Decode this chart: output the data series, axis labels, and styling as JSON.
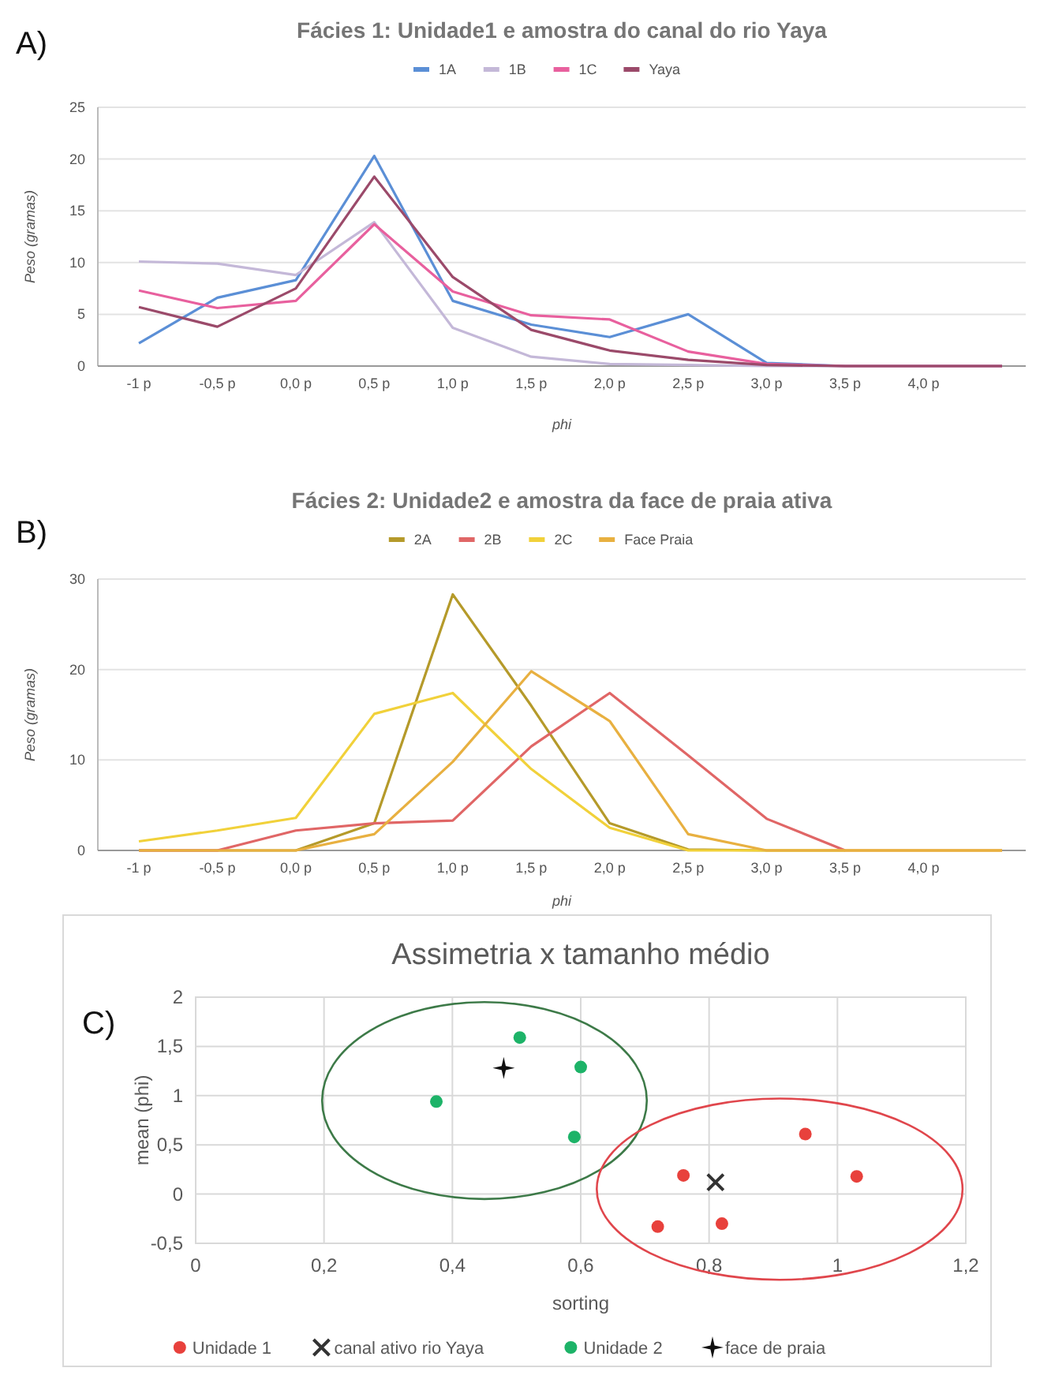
{
  "chart_data": [
    {
      "type": "line",
      "title": "Fácies 1: Unidade1 e amostra do canal do rio Yaya",
      "xlabel": "phi",
      "ylabel": "Peso (gramas)",
      "annotations": [
        "A)"
      ],
      "categories": [
        "-1 p",
        "-0,5 p",
        "0,0 p",
        "0,5 p",
        "1,0 p",
        "1,5 p",
        "2,0 p",
        "2,5 p",
        "3,0 p",
        "3,5 p",
        "4,0 p",
        null
      ],
      "ylim": [
        0,
        25
      ],
      "yticks": [
        0,
        5,
        10,
        15,
        20,
        25
      ],
      "grid": "y",
      "legend": "top",
      "line_style": "solid",
      "series": [
        {
          "name": "1A",
          "color": "#5b8fd6",
          "values": [
            2.2,
            6.6,
            8.3,
            20.3,
            6.3,
            4.0,
            2.8,
            5.0,
            0.3,
            0,
            0,
            0
          ]
        },
        {
          "name": "1B",
          "color": "#c4b8d8",
          "values": [
            10.1,
            9.9,
            8.8,
            13.9,
            3.7,
            0.9,
            0.2,
            0.1,
            0,
            0,
            0,
            0
          ]
        },
        {
          "name": "1C",
          "color": "#e8609e",
          "values": [
            7.3,
            5.6,
            6.3,
            13.7,
            7.2,
            4.9,
            4.5,
            1.4,
            0.2,
            0,
            0,
            0
          ]
        },
        {
          "name": "Yaya",
          "color": "#9b4a6a",
          "values": [
            5.7,
            3.8,
            7.5,
            18.3,
            8.6,
            3.5,
            1.5,
            0.6,
            0.1,
            0,
            0,
            0
          ]
        }
      ]
    },
    {
      "type": "line",
      "title": "Fácies 2: Unidade2 e amostra da face de praia ativa",
      "xlabel": "phi",
      "ylabel": "Peso (gramas)",
      "annotations": [
        "B)"
      ],
      "categories": [
        "-1 p",
        "-0,5 p",
        "0,0 p",
        "0,5 p",
        "1,0 p",
        "1,5 p",
        "2,0 p",
        "2,5 p",
        "3,0 p",
        "3,5 p",
        "4,0 p",
        null
      ],
      "ylim": [
        0,
        30
      ],
      "yticks": [
        0,
        10,
        20,
        30
      ],
      "grid": "y",
      "legend": "top",
      "line_style": "solid",
      "series": [
        {
          "name": "2A",
          "color": "#b59a2a",
          "values": [
            0,
            0,
            0,
            3,
            28.3,
            16,
            3,
            0.1,
            0,
            0,
            null,
            null
          ]
        },
        {
          "name": "2B",
          "color": "#e06666",
          "values": [
            0,
            0,
            2.2,
            3,
            3.3,
            11.5,
            17.4,
            10.5,
            3.5,
            0,
            0,
            0
          ]
        },
        {
          "name": "2C",
          "color": "#f1d13a",
          "values": [
            1,
            2.2,
            3.6,
            15.1,
            17.4,
            9,
            2.5,
            0,
            0,
            0,
            0,
            0
          ]
        },
        {
          "name": "Face Praia",
          "color": "#e8b040",
          "values": [
            0,
            0,
            0,
            1.8,
            9.8,
            19.8,
            14.3,
            1.8,
            0,
            0,
            0,
            0
          ]
        }
      ]
    },
    {
      "type": "scatter",
      "title": "Assimetria x tamanho médio",
      "xlabel": "sorting",
      "ylabel": "mean (phi)",
      "annotations": [
        "C)"
      ],
      "xlim": [
        0,
        1.2
      ],
      "xticks": [
        0,
        {
          "value": 0.2,
          "label": "0,2"
        },
        {
          "value": 0.4,
          "label": "0,4"
        },
        {
          "value": 0.6,
          "label": "0,6"
        },
        {
          "value": 0.8,
          "label": "0,8"
        },
        1,
        {
          "value": 1.2,
          "label": "1,2"
        }
      ],
      "ylim": [
        -0.5,
        2
      ],
      "yticks": [
        {
          "value": -0.5,
          "label": "-0,5"
        },
        0,
        {
          "value": 0.5,
          "label": "0,5"
        },
        1,
        {
          "value": 1.5,
          "label": "1,5"
        },
        2
      ],
      "grid": true,
      "legend": "bottom",
      "series": [
        {
          "name": "Unidade 1",
          "color": "#e8413c",
          "marker": "circle",
          "x": [
            0.72,
            0.76,
            0.82,
            0.95,
            1.03
          ],
          "values": [
            -0.33,
            0.19,
            -0.3,
            0.61,
            0.18
          ]
        },
        {
          "name": "canal ativo rio Yaya",
          "color": "#333333",
          "marker": "cross",
          "x": [
            0.81
          ],
          "values": [
            0.12
          ]
        },
        {
          "name": "Unidade 2",
          "color": "#1db368",
          "marker": "circle",
          "x": [
            0.375,
            0.505,
            0.6,
            0.59
          ],
          "values": [
            0.94,
            1.59,
            1.29,
            0.58
          ]
        },
        {
          "name": "face de praia",
          "color": "#111111",
          "marker": "star",
          "x": [
            0.48
          ],
          "values": [
            1.28
          ]
        }
      ]
    }
  ]
}
